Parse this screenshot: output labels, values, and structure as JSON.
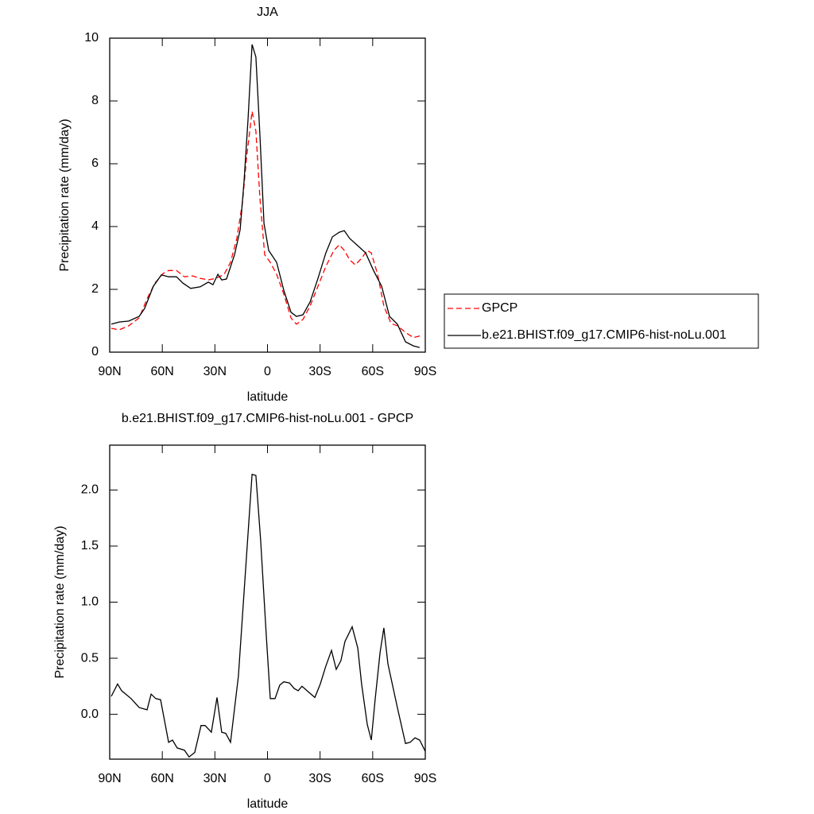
{
  "chart_data": [
    {
      "type": "line",
      "title": "JJA",
      "xlabel": "latitude",
      "ylabel": "Precipitation rate (mm/day)",
      "xlim": [
        90,
        -90
      ],
      "ylim": [
        0,
        10
      ],
      "xticks": [
        {
          "value": 90,
          "label": "90N"
        },
        {
          "value": 60,
          "label": "60N"
        },
        {
          "value": 30,
          "label": "30N"
        },
        0,
        {
          "value": -30,
          "label": "30S"
        },
        {
          "value": -60,
          "label": "60S"
        },
        {
          "value": -90,
          "label": "90S"
        }
      ],
      "yticks": [
        0,
        2,
        4,
        6,
        8,
        10
      ],
      "legend": "right",
      "series": [
        {
          "name": "GPCP",
          "color": "#ff0000",
          "dash": true,
          "x": [
            89.1,
            84.6,
            79.1,
            73.2,
            68.7,
            64.2,
            59.6,
            56.4,
            51.9,
            47.4,
            42.8,
            38.3,
            33.8,
            29.3,
            24.7,
            21.1,
            17.5,
            14.3,
            12.0,
            8.8,
            6.6,
            4.3,
            1.6,
            -1.6,
            -5.2,
            -9.3,
            -13.4,
            -16.5,
            -20.2,
            -24.3,
            -28.8,
            -33.3,
            -37.9,
            -41.0,
            -43.8,
            -46.9,
            -50.1,
            -53.7,
            -56.9,
            -59.2,
            -62.8,
            -66.4,
            -70.5,
            -74.1,
            -78.7,
            -83.2,
            -87.7
          ],
          "values": [
            0.76,
            0.71,
            0.84,
            1.09,
            1.7,
            2.2,
            2.5,
            2.6,
            2.6,
            2.4,
            2.43,
            2.35,
            2.3,
            2.35,
            2.48,
            2.86,
            3.62,
            4.76,
            6.15,
            7.67,
            7.04,
            4.9,
            3.1,
            2.86,
            2.48,
            1.85,
            1.09,
            0.89,
            1.04,
            1.47,
            2.1,
            2.73,
            3.24,
            3.42,
            3.24,
            2.94,
            2.78,
            2.99,
            3.24,
            3.16,
            2.48,
            1.47,
            0.91,
            0.84,
            0.63,
            0.46,
            0.53
          ]
        },
        {
          "name": "b.e21.BHIST.f09_g17.CMIP6-hist-noLu.001",
          "color": "#000000",
          "dash": false,
          "x": [
            89.1,
            84.6,
            79.1,
            73.2,
            70.1,
            65.1,
            60.5,
            56.4,
            51.9,
            48.3,
            43.8,
            38.3,
            33.8,
            31.1,
            28.3,
            26.1,
            23.4,
            18.8,
            15.6,
            13.4,
            11.1,
            8.8,
            6.6,
            4.3,
            2.0,
            -0.7,
            -5.2,
            -9.3,
            -13.4,
            -16.5,
            -20.2,
            -24.3,
            -28.8,
            -33.3,
            -37.0,
            -41.0,
            -43.8,
            -46.9,
            -51.5,
            -56.0,
            -60.5,
            -65.1,
            -69.6,
            -74.1,
            -78.7,
            -83.2,
            -86.8
          ],
          "values": [
            0.89,
            0.96,
            0.99,
            1.14,
            1.39,
            2.1,
            2.46,
            2.4,
            2.4,
            2.2,
            2.03,
            2.08,
            2.23,
            2.15,
            2.48,
            2.3,
            2.33,
            3.1,
            3.9,
            5.4,
            7.4,
            9.8,
            9.4,
            6.9,
            4.1,
            3.24,
            2.86,
            1.97,
            1.27,
            1.14,
            1.19,
            1.6,
            2.35,
            3.16,
            3.67,
            3.82,
            3.87,
            3.62,
            3.39,
            3.16,
            2.6,
            2.1,
            1.14,
            0.89,
            0.33,
            0.2,
            0.15
          ]
        }
      ]
    },
    {
      "type": "line",
      "title": "b.e21.BHIST.f09_g17.CMIP6-hist-noLu.001 - GPCP",
      "xlabel": "latitude",
      "ylabel": "Precipitation rate (mm/day)",
      "xlim": [
        90,
        -90
      ],
      "ylim": [
        -0.4,
        2.4
      ],
      "xticks": [
        {
          "value": 90,
          "label": "90N"
        },
        {
          "value": 60,
          "label": "60N"
        },
        {
          "value": 30,
          "label": "30N"
        },
        0,
        {
          "value": -30,
          "label": "30S"
        },
        {
          "value": -60,
          "label": "60S"
        },
        {
          "value": -90,
          "label": "90S"
        }
      ],
      "yticks": [
        {
          "value": 0,
          "label": "0.0"
        },
        0.5,
        {
          "value": 1,
          "label": "1.0"
        },
        1.5,
        {
          "value": 2,
          "label": "2.0"
        }
      ],
      "series": [
        {
          "color": "#000000",
          "dash": false,
          "x": [
            89.1,
            85.5,
            83.2,
            77.8,
            73.2,
            68.7,
            66.4,
            63.7,
            61.0,
            56.4,
            54.2,
            51.5,
            47.4,
            44.7,
            41.5,
            37.9,
            35.6,
            32.0,
            28.8,
            26.1,
            23.8,
            21.1,
            16.6,
            12.9,
            8.8,
            6.6,
            3.9,
            0.7,
            -1.6,
            -4.3,
            -7.0,
            -9.3,
            -12.5,
            -15.2,
            -17.5,
            -19.7,
            -23.3,
            -27.0,
            -30.1,
            -33.3,
            -36.5,
            -39.2,
            -41.9,
            -44.2,
            -48.3,
            -51.5,
            -53.7,
            -56.9,
            -59.2,
            -61.4,
            -64.2,
            -66.4,
            -68.7,
            -74.1,
            -78.7,
            -81.4,
            -84.1,
            -86.8,
            -90
          ],
          "values": [
            0.16,
            0.27,
            0.21,
            0.14,
            0.06,
            0.04,
            0.18,
            0.14,
            0.13,
            -0.25,
            -0.23,
            -0.3,
            -0.32,
            -0.38,
            -0.34,
            -0.1,
            -0.1,
            -0.16,
            0.15,
            -0.16,
            -0.17,
            -0.25,
            0.34,
            1.19,
            2.14,
            2.13,
            1.55,
            0.7,
            0.14,
            0.14,
            0.26,
            0.29,
            0.28,
            0.23,
            0.21,
            0.25,
            0.2,
            0.15,
            0.27,
            0.43,
            0.57,
            0.4,
            0.48,
            0.65,
            0.78,
            0.59,
            0.27,
            -0.09,
            -0.23,
            0.13,
            0.55,
            0.77,
            0.45,
            0.06,
            -0.26,
            -0.25,
            -0.21,
            -0.23,
            -0.33
          ]
        }
      ]
    }
  ]
}
